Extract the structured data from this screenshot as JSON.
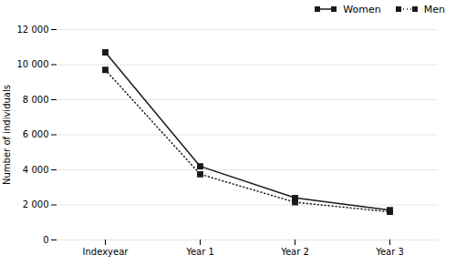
{
  "chart_data": {
    "type": "line",
    "categories": [
      "Indexyear",
      "Year 1",
      "Year 2",
      "Year 3"
    ],
    "series": [
      {
        "name": "Women",
        "color": "#1a1a1a",
        "marker": "square",
        "line_style": "solid",
        "values": [
          10700,
          4200,
          2400,
          1700
        ]
      },
      {
        "name": "Men",
        "color": "#1a1a1a",
        "marker": "square",
        "line_style": "dotted",
        "values": [
          9700,
          3750,
          2150,
          1600
        ]
      }
    ],
    "ylabel": "Number of individuals",
    "ylim": [
      0,
      12000
    ],
    "yticks": [
      0,
      {
        "value": 2000,
        "label": "2 000"
      },
      {
        "value": 4000,
        "label": "4 000"
      },
      {
        "value": 6000,
        "label": "6 000"
      },
      {
        "value": 8000,
        "label": "8 000"
      },
      {
        "value": 10000,
        "label": "10 000"
      },
      {
        "value": 12000,
        "label": "12 000"
      }
    ],
    "grid": true,
    "legend": "upper right"
  }
}
